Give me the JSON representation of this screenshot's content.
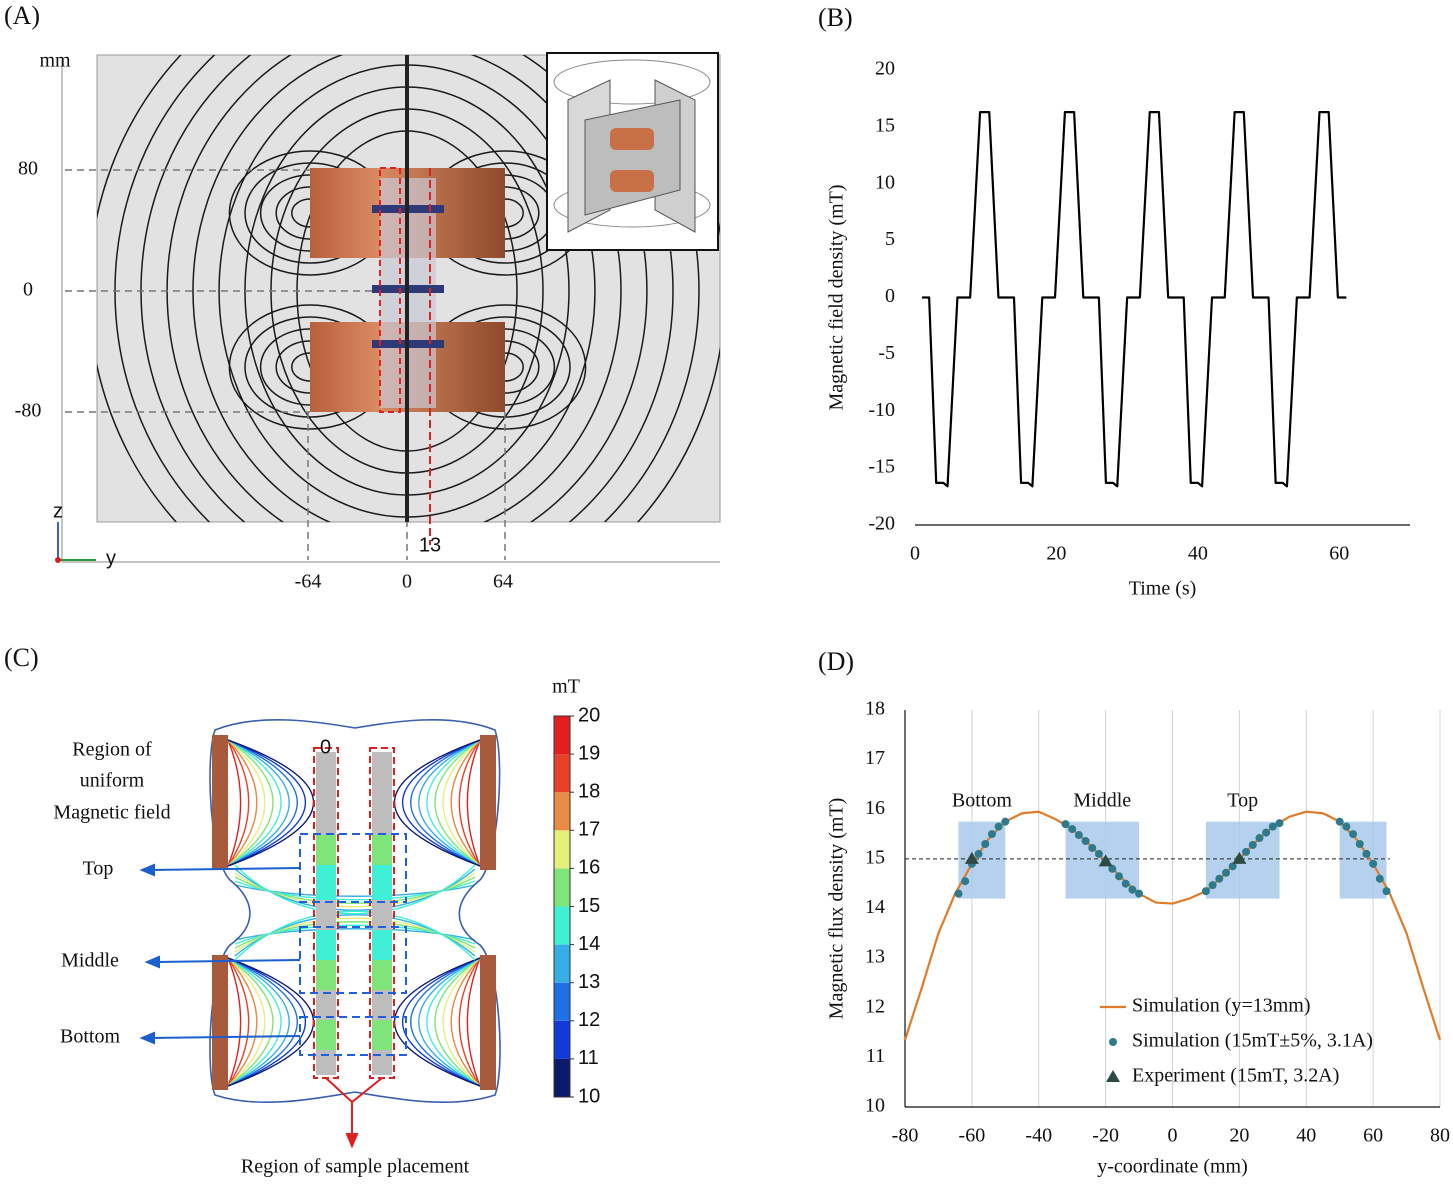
{
  "panel_a": {
    "label": "(A)",
    "unit": "mm",
    "z_ticks": [
      "80",
      "0",
      "-80"
    ],
    "y_ticks": [
      "-64",
      "0",
      "64"
    ],
    "probe_label": "13",
    "axis_z": "z",
    "axis_y": "y"
  },
  "panel_c": {
    "label": "(C)",
    "unit": "mT",
    "colorbar": {
      "lim": [
        10,
        20
      ],
      "ticks": [
        10,
        11,
        12,
        13,
        14,
        15,
        16,
        17,
        18,
        19,
        20
      ],
      "colors": [
        "#0b1a6b",
        "#1238d8",
        "#1f6fe6",
        "#35aee6",
        "#3ff0d6",
        "#7fe57a",
        "#e4f07a",
        "#e98a45",
        "#e8412a",
        "#e41d1d"
      ]
    },
    "zero_label": "0",
    "uniform_region": [
      "Region of",
      "uniform",
      "Magnetic field"
    ],
    "regions": [
      "Top",
      "Middle",
      "Bottom"
    ],
    "sample_region": "Region of sample placement"
  },
  "chart_data": [
    {
      "type": "line",
      "panel_label": "(B)",
      "x_label": "Time (s)",
      "y_label": "Magnetic field density (mT)",
      "x": [
        1,
        2,
        3,
        4,
        4.6,
        6,
        7.8,
        9.2,
        10.5,
        11.8,
        13,
        14,
        15,
        16,
        16.6,
        18,
        19.8,
        21.2,
        22.5,
        23.8,
        25,
        26,
        27,
        28,
        28.6,
        30,
        31.8,
        33.2,
        34.5,
        35.8,
        37,
        38,
        39,
        40,
        40.6,
        42,
        43.8,
        45.2,
        46.5,
        47.8,
        49,
        50,
        51,
        52,
        52.6,
        54,
        55.8,
        57.2,
        58.5,
        59.8,
        61
      ],
      "values": [
        0,
        0,
        -16.3,
        -16.3,
        -16.6,
        0,
        0,
        16.3,
        16.3,
        0,
        0,
        0,
        -16.3,
        -16.3,
        -16.6,
        0,
        0,
        16.3,
        16.3,
        0,
        0,
        0,
        -16.3,
        -16.3,
        -16.6,
        0,
        0,
        16.3,
        16.3,
        0,
        0,
        0,
        -16.3,
        -16.3,
        -16.6,
        0,
        0,
        16.3,
        16.3,
        0,
        0,
        0,
        -16.3,
        -16.3,
        -16.6,
        0,
        0,
        16.3,
        16.3,
        0,
        0
      ],
      "color": "#000000",
      "xlim": [
        0,
        70
      ],
      "xticks": [
        0,
        20,
        40,
        60
      ],
      "ylim": [
        -20,
        20
      ],
      "yticks": [
        -20,
        -15,
        -10,
        -5,
        0,
        5,
        10,
        15,
        20
      ],
      "grid": false
    },
    {
      "type": "line",
      "panel_label": "(D)",
      "x_label": "y-coordinate (mm)",
      "y_label": "Magnetic flux density (mT)",
      "series": [
        {
          "name": "Simulation (y=13mm)",
          "type": "line",
          "color": "#e07b2a",
          "x": [
            -80,
            -75,
            -70,
            -65,
            -60,
            -55,
            -50,
            -45,
            -40,
            -35,
            -30,
            -25,
            -20,
            -15,
            -10,
            -5,
            0,
            5,
            10,
            15,
            20,
            25,
            30,
            35,
            40,
            45,
            50,
            55,
            60,
            65,
            70,
            75,
            80
          ],
          "values": [
            11.35,
            12.4,
            13.5,
            14.3,
            14.9,
            15.4,
            15.75,
            15.92,
            15.95,
            15.8,
            15.6,
            15.3,
            14.95,
            14.6,
            14.3,
            14.12,
            14.1,
            14.2,
            14.35,
            14.65,
            15.0,
            15.35,
            15.65,
            15.85,
            15.95,
            15.92,
            15.75,
            15.4,
            14.9,
            14.3,
            13.5,
            12.4,
            11.35
          ]
        },
        {
          "name": "Simulation (15mT±5%, 3.1A)",
          "type": "scatter",
          "marker": "circle",
          "color": "#2e7a8a",
          "x": [
            -64,
            -62,
            -60,
            -58,
            -56,
            -54,
            -52,
            -50,
            -32,
            -30,
            -28,
            -26,
            -24,
            -22,
            -20,
            -18,
            -16,
            -14,
            -12,
            -10,
            10,
            12,
            14,
            16,
            18,
            20,
            22,
            24,
            26,
            28,
            30,
            32,
            50,
            52,
            54,
            56,
            58,
            60,
            62,
            64
          ],
          "values": [
            14.3,
            14.55,
            14.9,
            15.1,
            15.3,
            15.5,
            15.65,
            15.75,
            15.7,
            15.6,
            15.48,
            15.36,
            15.22,
            15.1,
            14.95,
            14.8,
            14.65,
            14.5,
            14.38,
            14.3,
            14.35,
            14.47,
            14.6,
            14.72,
            14.85,
            15.0,
            15.14,
            15.28,
            15.42,
            15.53,
            15.65,
            15.72,
            15.75,
            15.65,
            15.5,
            15.3,
            15.1,
            14.9,
            14.6,
            14.35
          ]
        },
        {
          "name": "Experiment (15mT, 3.2A)",
          "type": "scatter",
          "marker": "triangle",
          "color": "#2f4a45",
          "x": [
            -60,
            -20,
            20
          ],
          "values": [
            15.0,
            14.95,
            15.0
          ]
        }
      ],
      "regions": [
        {
          "label": "Bottom",
          "x": [
            -64,
            -50
          ],
          "y": [
            14.2,
            15.75
          ]
        },
        {
          "label": "Middle",
          "x": [
            -32,
            -10
          ],
          "y": [
            14.2,
            15.75
          ]
        },
        {
          "label": "Top",
          "x": [
            10,
            32
          ],
          "y": [
            14.2,
            15.75
          ]
        },
        {
          "label": null,
          "x": [
            50,
            64
          ],
          "y": [
            14.2,
            15.75
          ]
        }
      ],
      "region_color": "#a8c9ea",
      "hline": {
        "value": 15,
        "x": [
          -80,
          65
        ]
      },
      "xlim": [
        -80,
        80
      ],
      "xticks": [
        -80,
        -60,
        -40,
        -20,
        0,
        20,
        40,
        60,
        80
      ],
      "ylim": [
        10,
        18
      ],
      "yticks": [
        10,
        11,
        12,
        13,
        14,
        15,
        16,
        17,
        18
      ],
      "grid": "x",
      "legend": "lower right"
    }
  ]
}
